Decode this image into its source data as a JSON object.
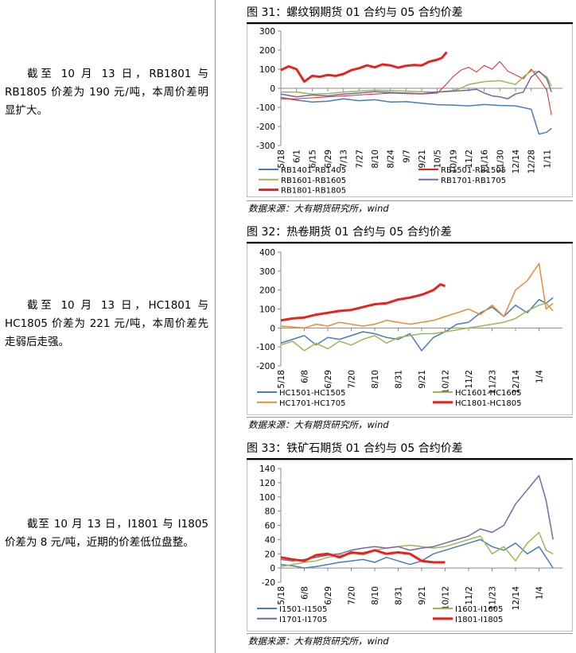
{
  "notes": [
    "截至 10 月 13 日，RB1801 与 RB1805 价差为 190 元/吨，本周价差明显扩大。",
    "截至 10 月 13 日，HC1801 与 HC1805 价差为 221 元/吨，本周价差先走弱后走强。",
    "截至 10 月 13 日，I1801 与 I1805 价差为 8 元/吨，近期的价差低位盘整。"
  ],
  "source_label": "数据来源：大有期货研究所，wind",
  "colors": {
    "blue": "#4a7bbd",
    "red": "#e8231f",
    "green": "#98b954",
    "purple": "#7b64a3",
    "orange": "#ec8a35"
  },
  "chart_data": [
    {
      "type": "line",
      "title": "图 31：螺纹钢期货 01 合约与 05 合约价差",
      "ylim": [
        -300,
        300
      ],
      "yticks": [
        300,
        200,
        100,
        0,
        -100,
        -200,
        -300
      ],
      "xticklabels": [
        "5/18",
        "6/1",
        "6/15",
        "6/29",
        "7/13",
        "7/27",
        "8/10",
        "8/24",
        "9/7",
        "9/21",
        "10/5",
        "10/19",
        "11/2",
        "11/16",
        "11/30",
        "12/14",
        "12/28",
        "1/11"
      ],
      "grid": false,
      "legend": "bottom",
      "series": [
        {
          "name": "RB1401-RB1405",
          "color": "blue",
          "width": 1.5,
          "x": [
            0,
            1,
            2,
            3,
            4,
            5,
            6,
            7,
            8,
            9,
            10,
            11,
            12,
            13,
            14,
            15,
            16,
            16.5,
            17,
            17.3
          ],
          "values": [
            -48,
            -62,
            -72,
            -68,
            -55,
            -65,
            -60,
            -72,
            -70,
            -78,
            -86,
            -88,
            -92,
            -85,
            -90,
            -92,
            -110,
            -240,
            -230,
            -210
          ]
        },
        {
          "name": "RB1501-RB1505",
          "color": "red",
          "width": 1,
          "x": [
            0,
            1,
            2,
            3,
            4,
            5,
            6,
            7,
            8,
            9,
            10,
            10.5,
            11,
            11.5,
            12,
            12.5,
            13,
            13.5,
            14,
            14.5,
            15,
            15.5,
            16,
            16.5,
            17,
            17.3
          ],
          "values": [
            -55,
            -55,
            -50,
            -45,
            -40,
            -35,
            -30,
            -25,
            -28,
            -30,
            -25,
            15,
            60,
            95,
            110,
            85,
            120,
            100,
            140,
            90,
            70,
            50,
            100,
            50,
            -10,
            -140
          ]
        },
        {
          "name": "RB1601-RB1605",
          "color": "green",
          "width": 1.5,
          "x": [
            0,
            1,
            2,
            3,
            4,
            5,
            6,
            7,
            8,
            9,
            10,
            11,
            11.5,
            12,
            13,
            14,
            15,
            15.5,
            16,
            16.5,
            17,
            17.3
          ],
          "values": [
            -20,
            -20,
            -30,
            -28,
            -20,
            -15,
            -10,
            -12,
            -15,
            -18,
            -20,
            -12,
            0,
            20,
            35,
            40,
            20,
            60,
            90,
            85,
            60,
            10
          ]
        },
        {
          "name": "RB1701-RB1705",
          "color": "purple",
          "width": 1.5,
          "x": [
            0,
            1,
            2,
            3,
            4,
            5,
            6,
            7,
            8,
            9,
            10,
            11,
            12,
            12.5,
            13,
            13.5,
            14,
            14.5,
            15,
            15.5,
            16,
            16.5,
            17,
            17.3
          ],
          "values": [
            -30,
            -45,
            -35,
            -40,
            -30,
            -25,
            -18,
            -22,
            -25,
            -28,
            -20,
            -15,
            -10,
            -5,
            -25,
            -40,
            -45,
            -55,
            -30,
            -20,
            60,
            90,
            50,
            -20
          ]
        },
        {
          "name": "RB1801-RB1805",
          "color": "red",
          "width": 3,
          "x": [
            0,
            0.5,
            1,
            1.5,
            2,
            2.5,
            3,
            3.5,
            4,
            4.5,
            5,
            5.5,
            6,
            6.5,
            7,
            7.5,
            8,
            8.5,
            9,
            9.5,
            10,
            10.3,
            10.6
          ],
          "values": [
            95,
            115,
            100,
            35,
            65,
            60,
            70,
            65,
            75,
            95,
            105,
            120,
            110,
            125,
            120,
            108,
            118,
            122,
            120,
            140,
            150,
            160,
            190
          ]
        }
      ]
    },
    {
      "type": "line",
      "title": "图 32：热卷期货 01 合约与 05 合约价差",
      "ylim": [
        -200,
        400
      ],
      "yticks": [
        400,
        300,
        200,
        100,
        0,
        -100,
        -200
      ],
      "xticklabels": [
        "5/18",
        "6/8",
        "6/29",
        "7/20",
        "8/10",
        "8/31",
        "9/21",
        "10/12",
        "11/2",
        "11/23",
        "12/14",
        "1/4"
      ],
      "grid": false,
      "legend": "bottom",
      "series": [
        {
          "name": "HC1501-HC1505",
          "color": "blue",
          "width": 1.5,
          "x": [
            0,
            0.5,
            1,
            1.5,
            2,
            2.5,
            3,
            3.5,
            4,
            4.5,
            5,
            5.5,
            6,
            6.5,
            7,
            7.5,
            8,
            8.5,
            9,
            9.5,
            10,
            10.5,
            11,
            11.3,
            11.6
          ],
          "values": [
            -80,
            -60,
            -40,
            -90,
            -50,
            -60,
            -40,
            -20,
            -30,
            -50,
            -60,
            -30,
            -120,
            -50,
            -20,
            20,
            30,
            80,
            110,
            60,
            120,
            80,
            150,
            130,
            160
          ]
        },
        {
          "name": "HC1601-HC1605",
          "color": "green",
          "width": 1.5,
          "x": [
            0,
            0.5,
            1,
            1.5,
            2,
            2.5,
            3,
            3.5,
            4,
            4.5,
            5,
            5.5,
            6,
            6.5,
            7,
            7.5,
            8,
            8.5,
            9,
            9.5,
            10,
            10.5,
            11,
            11.3,
            11.6
          ],
          "values": [
            -90,
            -70,
            -120,
            -80,
            -110,
            -70,
            -90,
            -60,
            -40,
            -80,
            -50,
            -40,
            -30,
            -30,
            -20,
            -10,
            0,
            10,
            20,
            30,
            50,
            90,
            120,
            130,
            90
          ]
        },
        {
          "name": "HC1701-HC1705",
          "color": "orange",
          "width": 1.5,
          "x": [
            0,
            0.5,
            1,
            1.5,
            2,
            2.5,
            3,
            3.5,
            4,
            4.5,
            5,
            5.5,
            6,
            6.5,
            7,
            7.5,
            8,
            8.5,
            9,
            9.5,
            10,
            10.5,
            11,
            11.3,
            11.6
          ],
          "values": [
            10,
            5,
            0,
            20,
            10,
            30,
            20,
            10,
            20,
            40,
            30,
            20,
            30,
            40,
            60,
            80,
            100,
            70,
            120,
            60,
            200,
            250,
            340,
            100,
            130
          ]
        },
        {
          "name": "HC1801-HC1805",
          "color": "red",
          "width": 3,
          "x": [
            0,
            0.5,
            1,
            1.5,
            2,
            2.5,
            3,
            3.5,
            4,
            4.5,
            5,
            5.5,
            6,
            6.5,
            6.8,
            7.0
          ],
          "values": [
            40,
            50,
            55,
            70,
            80,
            90,
            95,
            110,
            125,
            130,
            150,
            160,
            175,
            200,
            230,
            221
          ]
        }
      ]
    },
    {
      "type": "line",
      "title": "图 33：铁矿石期货 01 合约与 05 合约价差",
      "ylim": [
        -20,
        140
      ],
      "yticks": [
        140,
        120,
        100,
        80,
        60,
        40,
        20,
        0,
        -20
      ],
      "xticklabels": [
        "5/18",
        "6/8",
        "6/29",
        "7/20",
        "8/10",
        "8/31",
        "9/21",
        "10/12",
        "11/2",
        "11/23",
        "12/14",
        "1/4"
      ],
      "grid": false,
      "legend": "bottom",
      "series": [
        {
          "name": "I1501-I1505",
          "color": "blue",
          "width": 1.5,
          "x": [
            0,
            0.5,
            1,
            1.5,
            2,
            2.5,
            3,
            3.5,
            4,
            4.5,
            5,
            5.5,
            6,
            6.5,
            7,
            7.5,
            8,
            8.5,
            9,
            9.5,
            10,
            10.5,
            11,
            11.3,
            11.6
          ],
          "values": [
            5,
            3,
            0,
            2,
            5,
            8,
            10,
            12,
            8,
            15,
            10,
            5,
            10,
            20,
            25,
            30,
            35,
            40,
            30,
            25,
            35,
            20,
            30,
            15,
            0
          ]
        },
        {
          "name": "I1601-I1605",
          "color": "green",
          "width": 1.5,
          "x": [
            0,
            0.5,
            1,
            1.5,
            2,
            2.5,
            3,
            3.5,
            4,
            4.5,
            5,
            5.5,
            6,
            6.5,
            7,
            7.5,
            8,
            8.5,
            9,
            9.5,
            10,
            10.5,
            11,
            11.3,
            11.6
          ],
          "values": [
            2,
            5,
            8,
            10,
            15,
            18,
            20,
            22,
            25,
            28,
            30,
            32,
            30,
            28,
            30,
            35,
            40,
            45,
            20,
            30,
            10,
            35,
            50,
            25,
            20
          ]
        },
        {
          "name": "I1701-I1705",
          "color": "purple",
          "width": 1.5,
          "x": [
            0,
            0.5,
            1,
            1.5,
            2,
            2.5,
            3,
            3.5,
            4,
            4.5,
            5,
            5.5,
            6,
            6.5,
            7,
            7.5,
            8,
            8.5,
            9,
            9.5,
            10,
            10.5,
            11,
            11.3,
            11.6
          ],
          "values": [
            12,
            10,
            12,
            15,
            18,
            20,
            25,
            28,
            30,
            28,
            30,
            25,
            28,
            30,
            35,
            40,
            45,
            55,
            50,
            60,
            90,
            110,
            130,
            95,
            40
          ]
        },
        {
          "name": "I1801-I1805",
          "color": "red",
          "width": 3,
          "x": [
            0,
            0.5,
            1,
            1.5,
            2,
            2.5,
            3,
            3.5,
            4,
            4.5,
            5,
            5.5,
            6,
            6.5,
            6.8,
            7.0
          ],
          "values": [
            15,
            12,
            10,
            18,
            20,
            15,
            22,
            20,
            25,
            20,
            22,
            20,
            10,
            8,
            8,
            8
          ]
        }
      ]
    }
  ]
}
